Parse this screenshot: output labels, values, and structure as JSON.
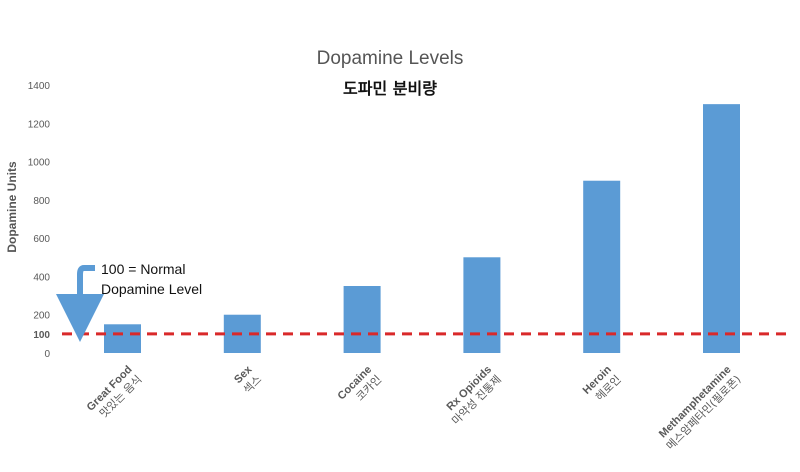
{
  "chart_data": {
    "type": "bar",
    "title": "Dopamine Levels",
    "subtitle": "도파민 분비량",
    "xlabel": "",
    "ylabel": "Dopamine Units",
    "ylim": [
      0,
      1400
    ],
    "yticks": [
      "0",
      "100",
      "200",
      "400",
      "600",
      "800",
      "1000",
      "1200",
      "1400"
    ],
    "categories": [
      {
        "en": "Great Food",
        "ko": "맛있는 음식"
      },
      {
        "en": "Sex",
        "ko": "섹스"
      },
      {
        "en": "Cocaine",
        "ko": "코카인"
      },
      {
        "en": "Rx Opioids",
        "ko": "마약성 진통제"
      },
      {
        "en": "Heroin",
        "ko": "헤로인"
      },
      {
        "en": "Methamphetamine",
        "ko": "메스암페타민(필로폰)"
      }
    ],
    "values": [
      150,
      200,
      350,
      500,
      900,
      1300
    ],
    "reference_line": {
      "value": 100,
      "color": "#d9292a",
      "style": "dashed"
    },
    "annotation": {
      "line1": "100 = Normal",
      "line2": "Dopamine Level"
    },
    "colors": {
      "bar": "#5b9bd5",
      "axis_text": "#595959"
    },
    "grid": false,
    "legend": "none"
  }
}
